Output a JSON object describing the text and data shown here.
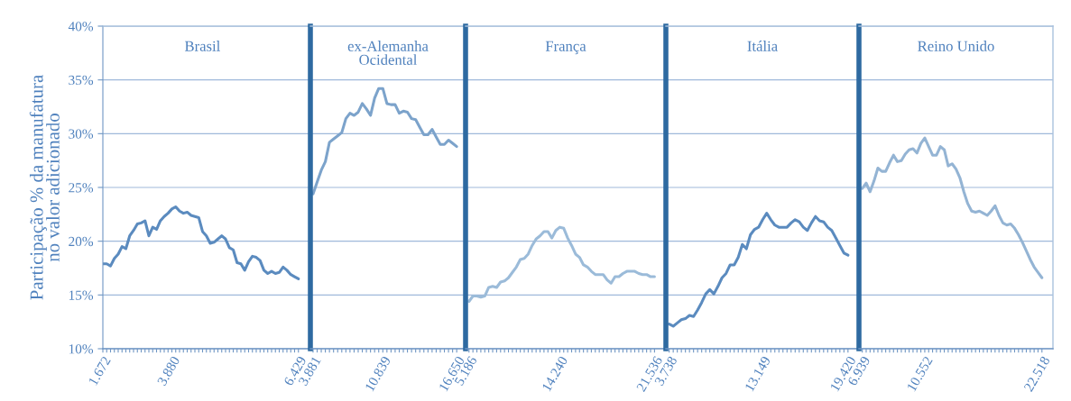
{
  "chart_data": [
    {
      "type": "line",
      "title": "Brasil",
      "ylabel": "Participação % da manufatura\nno valor adicionado",
      "color": "#5b8bbf",
      "ylim": [
        10,
        40
      ],
      "yticks": [
        {
          "value": 10,
          "label": "10%"
        },
        {
          "value": 15,
          "label": "15%"
        },
        {
          "value": 20,
          "label": "20%"
        },
        {
          "value": 25,
          "label": "25%"
        },
        {
          "value": 30,
          "label": "30%"
        },
        {
          "value": 35,
          "label": "35%"
        },
        {
          "value": 40,
          "label": "40%"
        }
      ],
      "grid": "y",
      "categories": [
        "1.672",
        null,
        null,
        null,
        null,
        null,
        null,
        null,
        null,
        null,
        null,
        null,
        null,
        null,
        null,
        null,
        null,
        null,
        "3.880",
        null,
        null,
        null,
        null,
        null,
        null,
        null,
        null,
        null,
        null,
        null,
        null,
        null,
        null,
        null,
        null,
        null,
        null,
        null,
        null,
        null,
        null,
        null,
        null,
        null,
        null,
        null,
        null,
        null,
        null,
        null,
        null,
        "6.429"
      ],
      "values": [
        17.9,
        17.9,
        17.7,
        18.4,
        18.8,
        19.5,
        19.3,
        20.5,
        21.0,
        21.6,
        21.7,
        21.9,
        20.5,
        21.3,
        21.1,
        21.9,
        22.3,
        22.6,
        23.0,
        23.2,
        22.8,
        22.6,
        22.7,
        22.4,
        22.3,
        22.2,
        20.9,
        20.5,
        19.8,
        19.9,
        20.2,
        20.5,
        20.2,
        19.4,
        19.2,
        18.0,
        17.9,
        17.3,
        18.1,
        18.6,
        18.5,
        18.2,
        17.3,
        17.0,
        17.2,
        17.0,
        17.1,
        17.6,
        17.3,
        16.9,
        16.7,
        16.5
      ]
    },
    {
      "type": "line",
      "title": "ex-Alemanha\nOcidental",
      "color": "#7ca3cb",
      "ylim": [
        10,
        40
      ],
      "tick_labels": "x",
      "grid": "y",
      "categories": [
        "3.881",
        null,
        null,
        null,
        null,
        null,
        null,
        null,
        null,
        null,
        null,
        null,
        null,
        null,
        null,
        null,
        null,
        "10.839",
        null,
        null,
        null,
        null,
        null,
        null,
        null,
        null,
        null,
        null,
        null,
        null,
        null,
        null,
        null,
        null,
        null,
        "16.650"
      ],
      "values": [
        24.4,
        25.5,
        26.6,
        27.4,
        29.2,
        29.5,
        29.8,
        30.1,
        31.4,
        31.9,
        31.7,
        32.0,
        32.8,
        32.3,
        31.7,
        33.3,
        34.2,
        34.2,
        32.8,
        32.7,
        32.7,
        31.9,
        32.1,
        32.0,
        31.4,
        31.3,
        30.6,
        29.9,
        29.9,
        30.4,
        29.7,
        29.0,
        29.0,
        29.4,
        29.1,
        28.8
      ]
    },
    {
      "type": "line",
      "title": "França",
      "color": "#9bbbd9",
      "ylim": [
        10,
        40
      ],
      "tick_labels": "x",
      "grid": "y",
      "categories": [
        "5.186",
        null,
        null,
        null,
        null,
        null,
        null,
        null,
        null,
        null,
        null,
        null,
        null,
        null,
        null,
        null,
        null,
        null,
        null,
        null,
        null,
        null,
        null,
        "14.240",
        null,
        null,
        null,
        null,
        null,
        null,
        null,
        null,
        null,
        null,
        null,
        null,
        null,
        null,
        null,
        null,
        null,
        null,
        null,
        null,
        null,
        null,
        null,
        "21.536"
      ],
      "values": [
        14.4,
        14.9,
        14.9,
        14.8,
        14.9,
        15.7,
        15.8,
        15.7,
        16.2,
        16.3,
        16.6,
        17.1,
        17.6,
        18.3,
        18.4,
        18.8,
        19.6,
        20.2,
        20.5,
        20.9,
        20.9,
        20.3,
        21.0,
        21.3,
        21.2,
        20.3,
        19.6,
        18.8,
        18.5,
        17.8,
        17.6,
        17.2,
        16.9,
        16.9,
        16.9,
        16.4,
        16.1,
        16.7,
        16.7,
        17.0,
        17.2,
        17.2,
        17.2,
        17.0,
        16.9,
        16.9,
        16.7,
        16.7
      ]
    },
    {
      "type": "line",
      "title": "Itália",
      "color": "#5b8bbf",
      "ylim": [
        10,
        40
      ],
      "tick_labels": "x",
      "grid": "y",
      "categories": [
        "3.738",
        null,
        null,
        null,
        null,
        null,
        null,
        null,
        null,
        null,
        null,
        null,
        null,
        null,
        null,
        null,
        null,
        null,
        null,
        null,
        null,
        null,
        null,
        "13.149",
        null,
        null,
        null,
        null,
        null,
        null,
        null,
        null,
        null,
        null,
        null,
        null,
        null,
        null,
        null,
        null,
        null,
        null,
        null,
        null,
        "19.420"
      ],
      "values": [
        12.3,
        12.1,
        12.4,
        12.7,
        12.8,
        13.1,
        13.0,
        13.6,
        14.3,
        15.1,
        15.5,
        15.1,
        15.8,
        16.6,
        17.0,
        17.8,
        17.8,
        18.5,
        19.7,
        19.3,
        20.6,
        21.1,
        21.3,
        22.0,
        22.6,
        22.0,
        21.5,
        21.3,
        21.3,
        21.3,
        21.7,
        22.0,
        21.8,
        21.3,
        21.0,
        21.7,
        22.3,
        21.9,
        21.8,
        21.3,
        21.0,
        20.3,
        19.6,
        18.9,
        18.7
      ]
    },
    {
      "type": "line",
      "title": "Reino Unido",
      "color": "#94b4d4",
      "ylim": [
        10,
        40
      ],
      "tick_labels": "x",
      "grid": "y",
      "categories": [
        "6.939",
        null,
        null,
        null,
        null,
        null,
        null,
        null,
        null,
        null,
        null,
        null,
        null,
        null,
        null,
        null,
        "10.552",
        null,
        null,
        null,
        null,
        null,
        null,
        null,
        null,
        null,
        null,
        null,
        null,
        null,
        null,
        null,
        null,
        null,
        null,
        null,
        null,
        null,
        null,
        null,
        null,
        null,
        null,
        null,
        null,
        null,
        "22.518"
      ],
      "values": [
        24.9,
        25.4,
        24.6,
        25.6,
        26.8,
        26.5,
        26.5,
        27.3,
        28.0,
        27.4,
        27.5,
        28.1,
        28.5,
        28.6,
        28.2,
        29.1,
        29.6,
        28.8,
        28.0,
        28.0,
        28.8,
        28.5,
        27.0,
        27.2,
        26.7,
        25.9,
        24.6,
        23.5,
        22.8,
        22.7,
        22.8,
        22.6,
        22.4,
        22.8,
        23.3,
        22.4,
        21.7,
        21.5,
        21.6,
        21.2,
        20.6,
        19.9,
        19.1,
        18.3,
        17.6,
        17.1,
        16.6
      ]
    }
  ]
}
